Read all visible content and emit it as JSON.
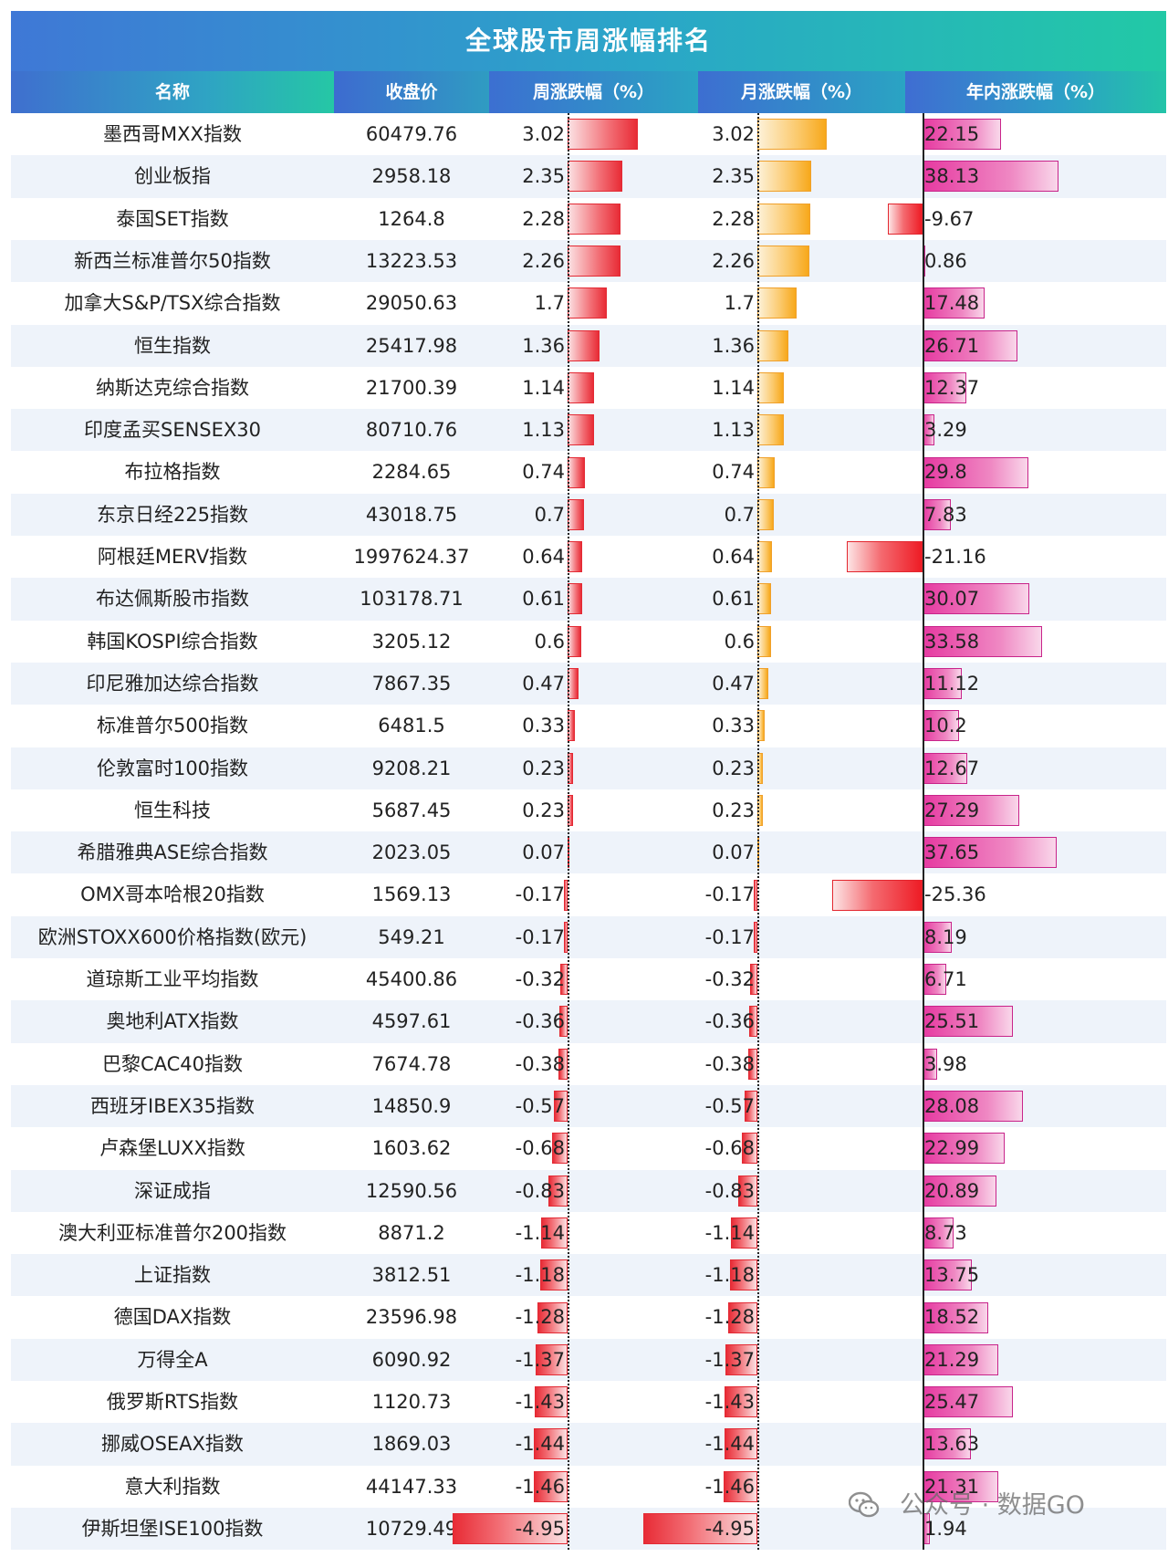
{
  "title": "全球股市周涨幅排名",
  "columns": {
    "name": "名称",
    "close": "收盘价",
    "weekly": "周涨跌幅（%）",
    "monthly": "月涨跌幅（%）",
    "ytd": "年内涨跌幅（%）"
  },
  "watermark": "公众号 · 数据GO",
  "colors": {
    "header": "#2aa6c8",
    "weekly_bar": "#e82c36",
    "monthly_bar": "#f7a81b",
    "ytd_bar": "#e63aa1",
    "ytd_negative_bar": "#ee1c25",
    "row_alt": "#eef3fa"
  },
  "chart_data": {
    "type": "table",
    "title": "全球股市周涨幅排名",
    "rows": [
      {
        "name": "墨西哥MXX指数",
        "close": "60479.76",
        "weekly": 3.02,
        "monthly": 3.02,
        "ytd": 22.15
      },
      {
        "name": "创业板指",
        "close": "2958.18",
        "weekly": 2.35,
        "monthly": 2.35,
        "ytd": 38.13
      },
      {
        "name": "泰国SET指数",
        "close": "1264.8",
        "weekly": 2.28,
        "monthly": 2.28,
        "ytd": -9.67
      },
      {
        "name": "新西兰标准普尔50指数",
        "close": "13223.53",
        "weekly": 2.26,
        "monthly": 2.26,
        "ytd": 0.86
      },
      {
        "name": "加拿大S&P/TSX综合指数",
        "close": "29050.63",
        "weekly": 1.7,
        "monthly": 1.7,
        "ytd": 17.48
      },
      {
        "name": "恒生指数",
        "close": "25417.98",
        "weekly": 1.36,
        "monthly": 1.36,
        "ytd": 26.71
      },
      {
        "name": "纳斯达克综合指数",
        "close": "21700.39",
        "weekly": 1.14,
        "monthly": 1.14,
        "ytd": 12.37
      },
      {
        "name": "印度孟买SENSEX30",
        "close": "80710.76",
        "weekly": 1.13,
        "monthly": 1.13,
        "ytd": 3.29
      },
      {
        "name": "布拉格指数",
        "close": "2284.65",
        "weekly": 0.74,
        "monthly": 0.74,
        "ytd": 29.8
      },
      {
        "name": "东京日经225指数",
        "close": "43018.75",
        "weekly": 0.7,
        "monthly": 0.7,
        "ytd": 7.83
      },
      {
        "name": "阿根廷MERV指数",
        "close": "1997624.37",
        "weekly": 0.64,
        "monthly": 0.64,
        "ytd": -21.16
      },
      {
        "name": "布达佩斯股市指数",
        "close": "103178.71",
        "weekly": 0.61,
        "monthly": 0.61,
        "ytd": 30.07
      },
      {
        "name": "韩国KOSPI综合指数",
        "close": "3205.12",
        "weekly": 0.6,
        "monthly": 0.6,
        "ytd": 33.58
      },
      {
        "name": "印尼雅加达综合指数",
        "close": "7867.35",
        "weekly": 0.47,
        "monthly": 0.47,
        "ytd": 11.12
      },
      {
        "name": "标准普尔500指数",
        "close": "6481.5",
        "weekly": 0.33,
        "monthly": 0.33,
        "ytd": 10.2
      },
      {
        "name": "伦敦富时100指数",
        "close": "9208.21",
        "weekly": 0.23,
        "monthly": 0.23,
        "ytd": 12.67
      },
      {
        "name": "恒生科技",
        "close": "5687.45",
        "weekly": 0.23,
        "monthly": 0.23,
        "ytd": 27.29
      },
      {
        "name": "希腊雅典ASE综合指数",
        "close": "2023.05",
        "weekly": 0.07,
        "monthly": 0.07,
        "ytd": 37.65
      },
      {
        "name": "OMX哥本哈根20指数",
        "close": "1569.13",
        "weekly": -0.17,
        "monthly": -0.17,
        "ytd": -25.36
      },
      {
        "name": "欧洲STOXX600价格指数(欧元)",
        "close": "549.21",
        "weekly": -0.17,
        "monthly": -0.17,
        "ytd": 8.19
      },
      {
        "name": "道琼斯工业平均指数",
        "close": "45400.86",
        "weekly": -0.32,
        "monthly": -0.32,
        "ytd": 6.71
      },
      {
        "name": "奥地利ATX指数",
        "close": "4597.61",
        "weekly": -0.36,
        "monthly": -0.36,
        "ytd": 25.51
      },
      {
        "name": "巴黎CAC40指数",
        "close": "7674.78",
        "weekly": -0.38,
        "monthly": -0.38,
        "ytd": 3.98
      },
      {
        "name": "西班牙IBEX35指数",
        "close": "14850.9",
        "weekly": -0.57,
        "monthly": -0.57,
        "ytd": 28.08
      },
      {
        "name": "卢森堡LUXX指数",
        "close": "1603.62",
        "weekly": -0.68,
        "monthly": -0.68,
        "ytd": 22.99
      },
      {
        "name": "深证成指",
        "close": "12590.56",
        "weekly": -0.83,
        "monthly": -0.83,
        "ytd": 20.89
      },
      {
        "name": "澳大利亚标准普尔200指数",
        "close": "8871.2",
        "weekly": -1.14,
        "monthly": -1.14,
        "ytd": 8.73
      },
      {
        "name": "上证指数",
        "close": "3812.51",
        "weekly": -1.18,
        "monthly": -1.18,
        "ytd": 13.75
      },
      {
        "name": "德国DAX指数",
        "close": "23596.98",
        "weekly": -1.28,
        "monthly": -1.28,
        "ytd": 18.52
      },
      {
        "name": "万得全A",
        "close": "6090.92",
        "weekly": -1.37,
        "monthly": -1.37,
        "ytd": 21.29
      },
      {
        "name": "俄罗斯RTS指数",
        "close": "1120.73",
        "weekly": -1.43,
        "monthly": -1.43,
        "ytd": 25.47
      },
      {
        "name": "挪威OSEAX指数",
        "close": "1869.03",
        "weekly": -1.44,
        "monthly": -1.44,
        "ytd": 13.63
      },
      {
        "name": "意大利指数",
        "close": "44147.33",
        "weekly": -1.46,
        "monthly": -1.46,
        "ytd": 21.31
      },
      {
        "name": "伊斯坦堡ISE100指数",
        "close": "10729.49",
        "weekly": -4.95,
        "monthly": -4.95,
        "ytd": 1.94
      }
    ]
  }
}
